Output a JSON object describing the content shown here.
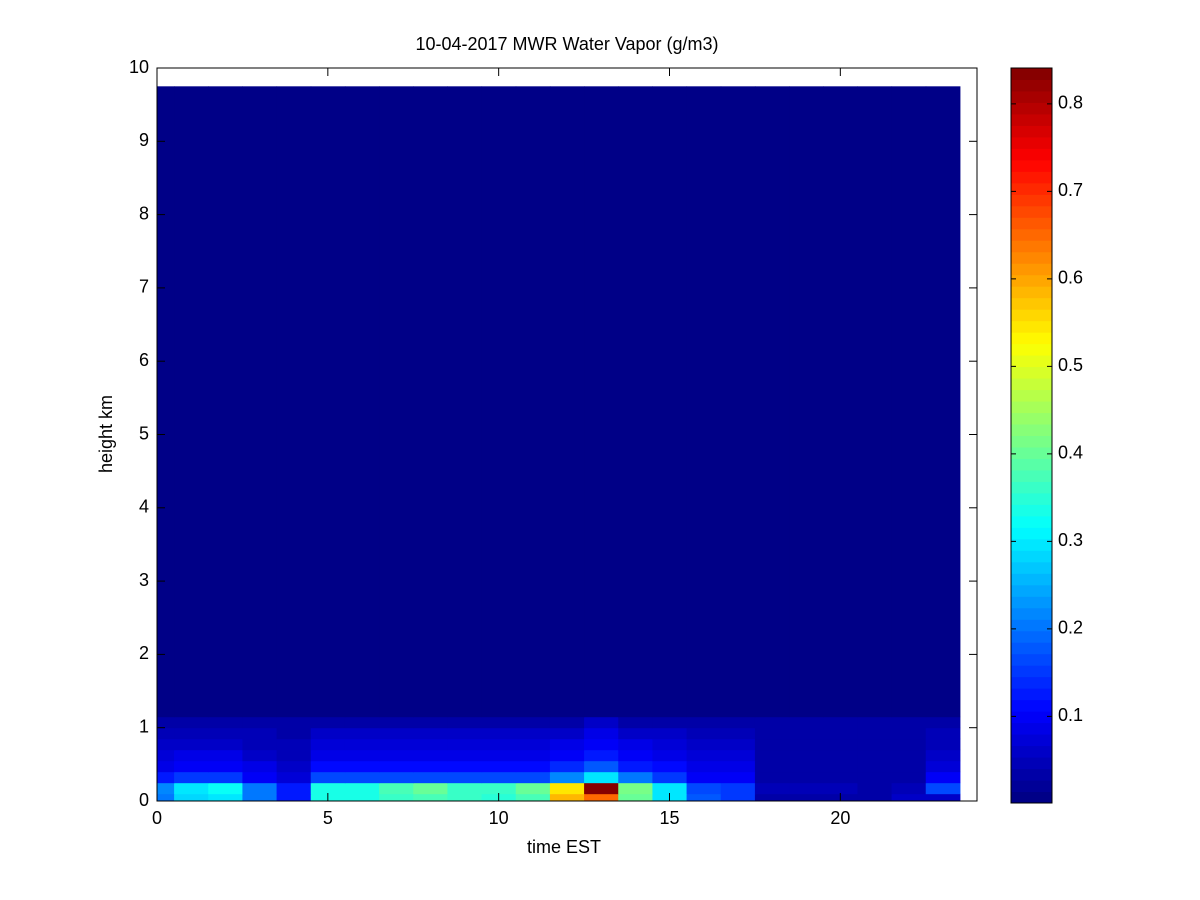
{
  "chart_data": {
    "type": "heatmap",
    "title": "10-04-2017 MWR Water Vapor (g/m3)",
    "x_label": "time EST",
    "y_label": "height km",
    "x_edges": [
      0,
      0.5,
      1.5,
      2.5,
      3.5,
      4.5,
      5.5,
      6.5,
      7.5,
      8.5,
      9.5,
      10.5,
      11.5,
      12.5,
      13.5,
      14.5,
      15.5,
      16.5,
      17.5,
      18.5,
      19.5,
      20.5,
      21.5,
      22.5,
      23.5
    ],
    "y_edges": [
      0,
      0.1,
      0.25,
      0.4,
      0.55,
      0.7,
      0.85,
      1.0,
      1.15,
      9.75
    ],
    "z": [
      [
        0.2,
        0.28,
        0.3,
        0.2,
        0.12,
        0.33,
        0.33,
        0.36,
        0.38,
        0.36,
        0.35,
        0.38,
        0.58,
        0.65,
        0.4,
        0.3,
        0.18,
        0.15,
        0.04,
        0.04,
        0.04,
        0.04,
        0.06,
        0.06
      ],
      [
        0.22,
        0.3,
        0.32,
        0.2,
        0.12,
        0.33,
        0.33,
        0.37,
        0.4,
        0.36,
        0.36,
        0.4,
        0.55,
        0.84,
        0.42,
        0.3,
        0.17,
        0.15,
        0.05,
        0.05,
        0.05,
        0.04,
        0.05,
        0.17
      ],
      [
        0.13,
        0.15,
        0.15,
        0.1,
        0.07,
        0.17,
        0.17,
        0.17,
        0.17,
        0.17,
        0.17,
        0.17,
        0.22,
        0.3,
        0.2,
        0.15,
        0.1,
        0.1,
        0.04,
        0.04,
        0.04,
        0.04,
        0.04,
        0.1
      ],
      [
        0.09,
        0.1,
        0.1,
        0.08,
        0.06,
        0.11,
        0.11,
        0.11,
        0.11,
        0.11,
        0.11,
        0.11,
        0.14,
        0.18,
        0.13,
        0.11,
        0.09,
        0.09,
        0.04,
        0.04,
        0.04,
        0.04,
        0.04,
        0.07
      ],
      [
        0.07,
        0.08,
        0.08,
        0.06,
        0.05,
        0.08,
        0.08,
        0.08,
        0.09,
        0.08,
        0.08,
        0.08,
        0.1,
        0.13,
        0.1,
        0.08,
        0.07,
        0.07,
        0.04,
        0.04,
        0.04,
        0.04,
        0.04,
        0.06
      ],
      [
        0.06,
        0.06,
        0.06,
        0.05,
        0.05,
        0.07,
        0.07,
        0.07,
        0.07,
        0.07,
        0.07,
        0.07,
        0.08,
        0.1,
        0.08,
        0.07,
        0.06,
        0.06,
        0.04,
        0.04,
        0.04,
        0.04,
        0.04,
        0.05
      ],
      [
        0.05,
        0.05,
        0.05,
        0.05,
        0.04,
        0.06,
        0.06,
        0.06,
        0.06,
        0.06,
        0.06,
        0.06,
        0.06,
        0.08,
        0.06,
        0.06,
        0.05,
        0.05,
        0.04,
        0.04,
        0.04,
        0.04,
        0.04,
        0.05
      ],
      [
        0.03,
        0.03,
        0.03,
        0.03,
        0.03,
        0.03,
        0.03,
        0.03,
        0.03,
        0.03,
        0.03,
        0.03,
        0.03,
        0.06,
        0.03,
        0.03,
        0.03,
        0.03,
        0.03,
        0.03,
        0.03,
        0.03,
        0.03,
        0.03
      ],
      [
        0.01,
        0.01,
        0.01,
        0.01,
        0.01,
        0.01,
        0.01,
        0.01,
        0.01,
        0.01,
        0.01,
        0.01,
        0.01,
        0.01,
        0.01,
        0.01,
        0.01,
        0.01,
        0.01,
        0.01,
        0.01,
        0.01,
        0.01,
        0.01
      ]
    ],
    "colormap": "jet",
    "xlim": [
      0,
      24
    ],
    "xticks": [
      0,
      5,
      10,
      15,
      20
    ],
    "ylim": [
      0,
      10
    ],
    "yticks": [
      0,
      1,
      2,
      3,
      4,
      5,
      6,
      7,
      8,
      9,
      10
    ],
    "clim": [
      0.001,
      0.841
    ],
    "cticks": [
      0.1,
      0.2,
      0.3,
      0.4,
      0.5,
      0.6,
      0.7,
      0.8
    ]
  }
}
